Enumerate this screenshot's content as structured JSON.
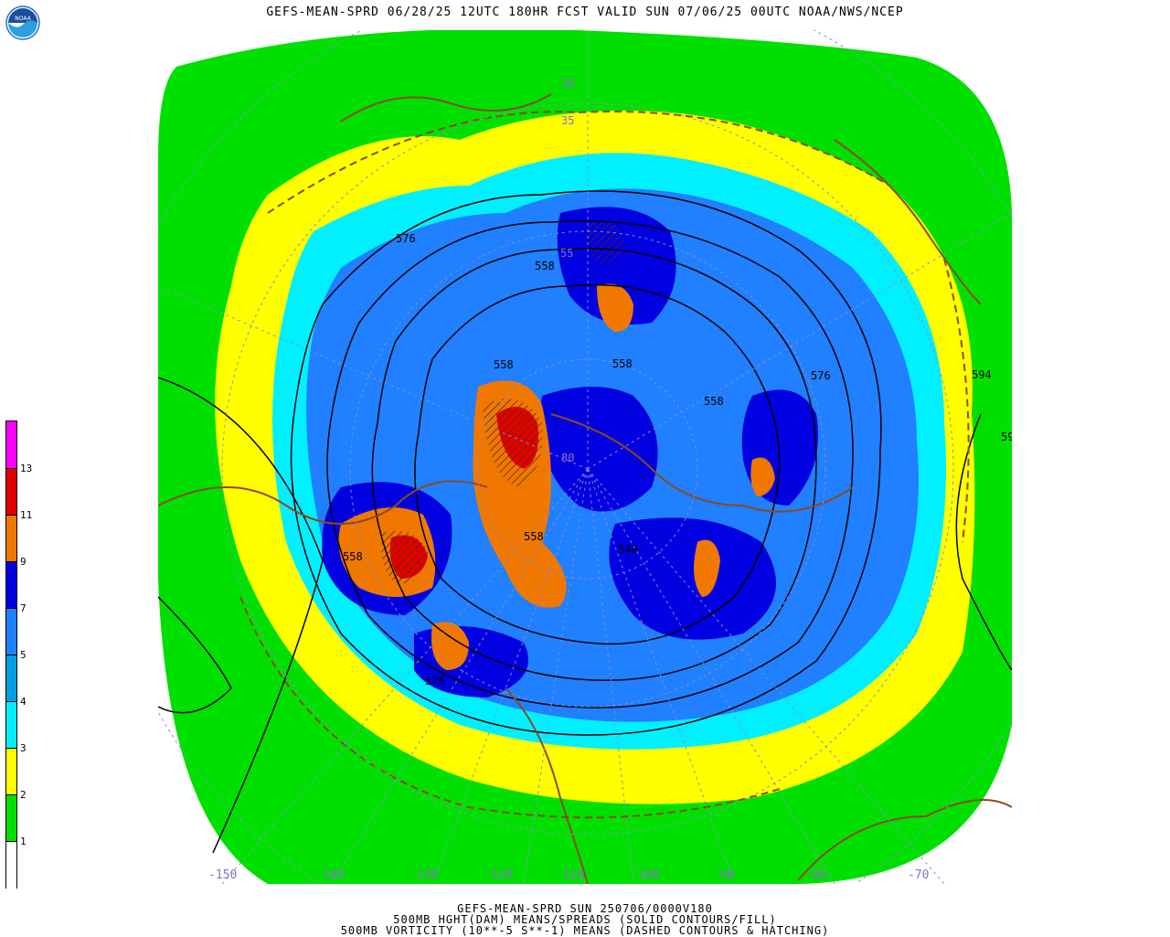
{
  "header": {
    "title": "GEFS-MEAN-SPRD 06/28/25 12UTC 180HR FCST VALID SUN 07/06/25 00UTC NOAA/NWS/NCEP"
  },
  "logo": {
    "text": "NOAA"
  },
  "colorbar": {
    "colors": [
      "#ff00ff",
      "#e00000",
      "#f07800",
      "#0000e0",
      "#2080ff",
      "#00a0e0",
      "#00f0ff",
      "#ffff00",
      "#00e000",
      "#ffffff"
    ],
    "labels": [
      "13",
      "11",
      "9",
      "7",
      "5",
      "4",
      "3",
      "2",
      "1"
    ]
  },
  "contours": {
    "height_labels": [
      "576",
      "558",
      "558",
      "558",
      "558",
      "558",
      "558",
      "540",
      "576",
      "576",
      "594",
      "59"
    ],
    "lat_labels": [
      "30",
      "35",
      "55",
      "80"
    ]
  },
  "longitudes": [
    "-150",
    "-140",
    "-130",
    "-120",
    "-110",
    "-100",
    "-90",
    "-80",
    "-70"
  ],
  "footer": {
    "line1": "GEFS-MEAN-SPRD SUN 250706/0000V180",
    "line2": "500MB HGHT(DAM) MEANS/SPREADS (SOLID CONTOURS/FILL)",
    "line3": "500MB VORTICITY (10**-5 S**-1) MEANS (DASHED CONTOURS & HATCHING)"
  }
}
